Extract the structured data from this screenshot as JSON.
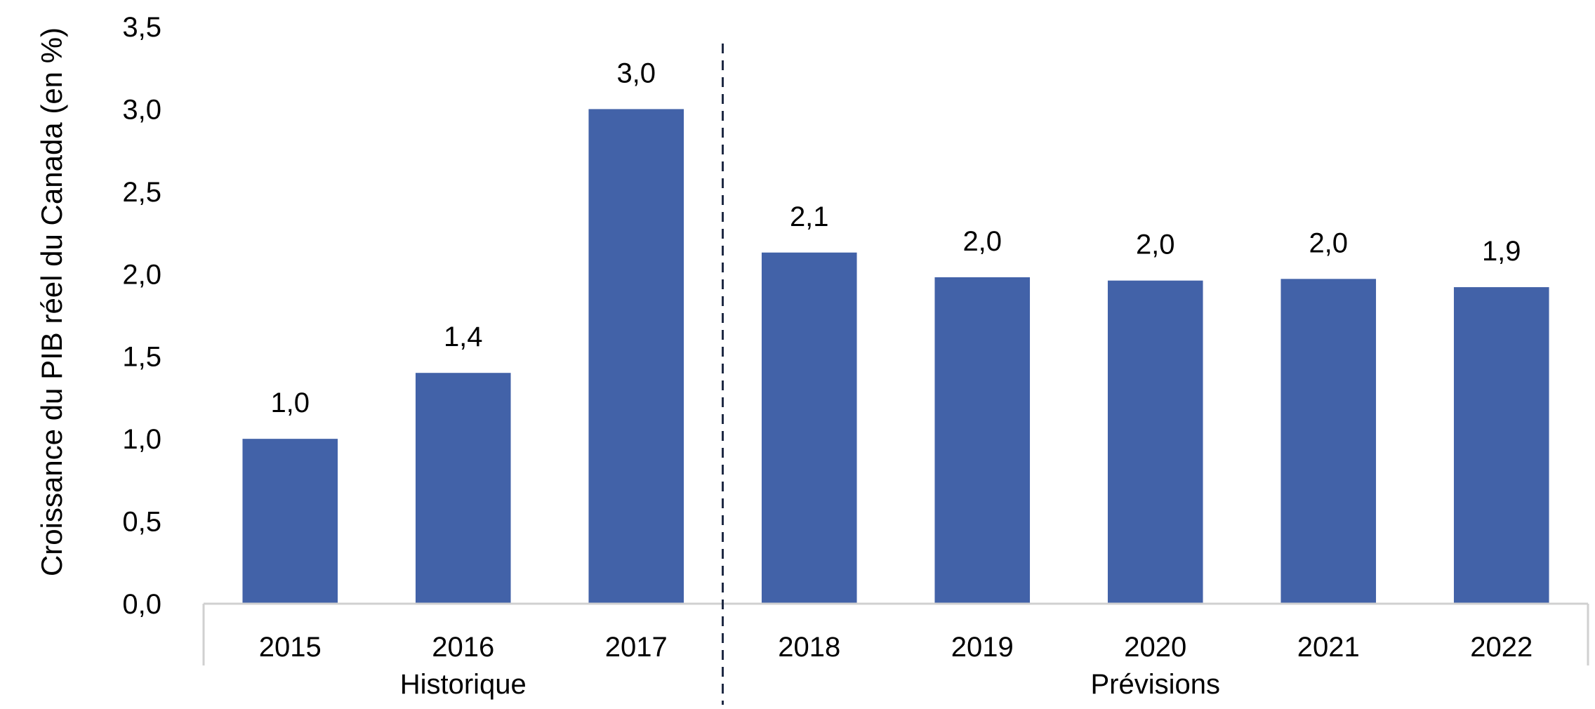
{
  "chart_data": {
    "type": "bar",
    "title": "",
    "ylabel": "Croissance du PIB réel du Canada (en %)",
    "xlabel": "",
    "ylim": [
      0,
      3.5
    ],
    "ytick_step": 0.5,
    "yticks": [
      "0,0",
      "0,5",
      "1,0",
      "1,5",
      "2,0",
      "2,5",
      "3,0",
      "3,5"
    ],
    "grid": false,
    "legend": "none",
    "categories": [
      "2015",
      "2016",
      "2017",
      "2018",
      "2019",
      "2020",
      "2021",
      "2022"
    ],
    "values": [
      1.0,
      1.4,
      3.0,
      2.13,
      1.98,
      1.96,
      1.97,
      1.92
    ],
    "data_labels": [
      "1,0",
      "1,4",
      "3,0",
      "2,1",
      "2,0",
      "2,0",
      "2,0",
      "1,9"
    ],
    "groups": [
      {
        "label": "Historique",
        "categories": [
          "2015",
          "2016",
          "2017"
        ]
      },
      {
        "label": "Prévisions",
        "categories": [
          "2018",
          "2019",
          "2020",
          "2021",
          "2022"
        ]
      }
    ],
    "divider_after_category": "2017",
    "bar_color": "#4262A8",
    "axis_color": "#D0D0D0",
    "divider_color": "#1F2A44"
  }
}
